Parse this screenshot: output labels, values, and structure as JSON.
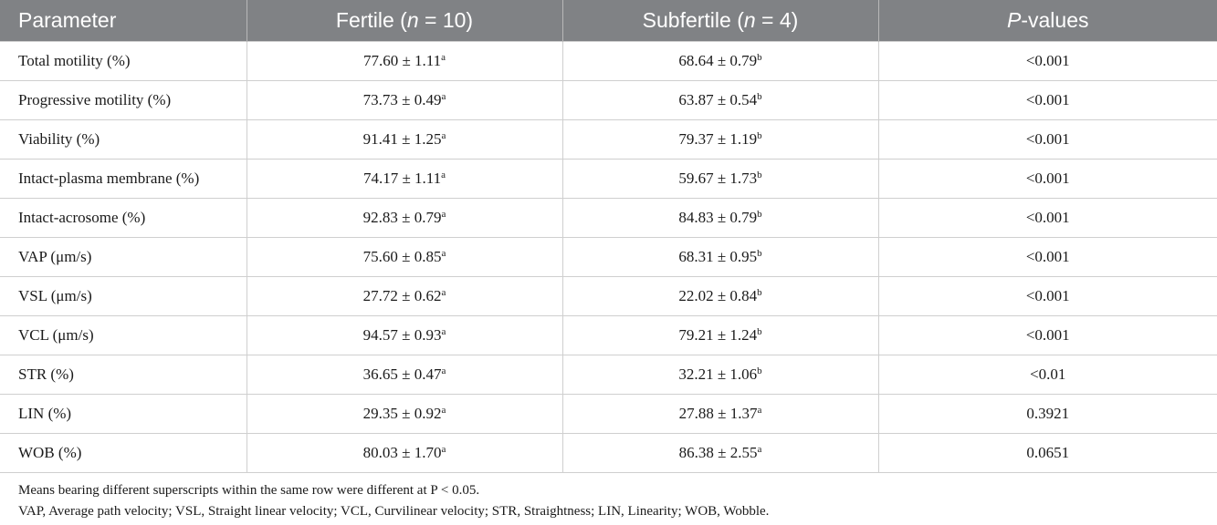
{
  "table": {
    "headers": [
      {
        "main": "Parameter",
        "italic": "",
        "tail": ""
      },
      {
        "main": "Fertile (",
        "italic": "n",
        "tail": " = 10)"
      },
      {
        "main": "Subfertile (",
        "italic": "n",
        "tail": " = 4)"
      },
      {
        "main": "",
        "italic": "P",
        "tail": "-values"
      }
    ],
    "rows": [
      {
        "parameter": "Total motility (%)",
        "fertile": "77.60 ± 1.11",
        "fertile_sup": "a",
        "subfertile": "68.64 ± 0.79",
        "subfertile_sup": "b",
        "p": "<0.001"
      },
      {
        "parameter": "Progressive motility (%)",
        "fertile": "73.73 ± 0.49",
        "fertile_sup": "a",
        "subfertile": "63.87 ± 0.54",
        "subfertile_sup": "b",
        "p": "<0.001"
      },
      {
        "parameter": "Viability (%)",
        "fertile": "91.41 ± 1.25",
        "fertile_sup": "a",
        "subfertile": "79.37 ± 1.19",
        "subfertile_sup": "b",
        "p": "<0.001"
      },
      {
        "parameter": "Intact-plasma membrane (%)",
        "fertile": "74.17 ± 1.11",
        "fertile_sup": "a",
        "subfertile": "59.67 ± 1.73",
        "subfertile_sup": "b",
        "p": "<0.001"
      },
      {
        "parameter": "Intact-acrosome (%)",
        "fertile": "92.83 ± 0.79",
        "fertile_sup": "a",
        "subfertile": "84.83 ± 0.79",
        "subfertile_sup": "b",
        "p": "<0.001"
      },
      {
        "parameter": "VAP (μm/s)",
        "fertile": "75.60 ± 0.85",
        "fertile_sup": "a",
        "subfertile": "68.31 ± 0.95",
        "subfertile_sup": "b",
        "p": "<0.001"
      },
      {
        "parameter": "VSL (μm/s)",
        "fertile": "27.72 ± 0.62",
        "fertile_sup": "a",
        "subfertile": "22.02 ± 0.84",
        "subfertile_sup": "b",
        "p": "<0.001"
      },
      {
        "parameter": "VCL (μm/s)",
        "fertile": "94.57 ± 0.93",
        "fertile_sup": "a",
        "subfertile": "79.21 ± 1.24",
        "subfertile_sup": "b",
        "p": "<0.001"
      },
      {
        "parameter": "STR (%)",
        "fertile": "36.65 ± 0.47",
        "fertile_sup": "a",
        "subfertile": "32.21 ± 1.06",
        "subfertile_sup": "b",
        "p": "<0.01"
      },
      {
        "parameter": "LIN (%)",
        "fertile": "29.35 ± 0.92",
        "fertile_sup": "a",
        "subfertile": "27.88 ± 1.37",
        "subfertile_sup": "a",
        "p": "0.3921"
      },
      {
        "parameter": "WOB (%)",
        "fertile": "80.03 ± 1.70",
        "fertile_sup": "a",
        "subfertile": "86.38 ± 2.55",
        "subfertile_sup": "a",
        "p": "0.0651"
      }
    ]
  },
  "notes": {
    "line1": "Means bearing different superscripts within the same row were different at P < 0.05.",
    "line2": "VAP, Average path velocity; VSL, Straight linear velocity; VCL, Curvilinear velocity; STR, Straightness; LIN, Linearity; WOB, Wobble."
  },
  "colors": {
    "header_bg": "#808285",
    "header_text": "#ffffff",
    "rule": "#cfcfcf"
  }
}
